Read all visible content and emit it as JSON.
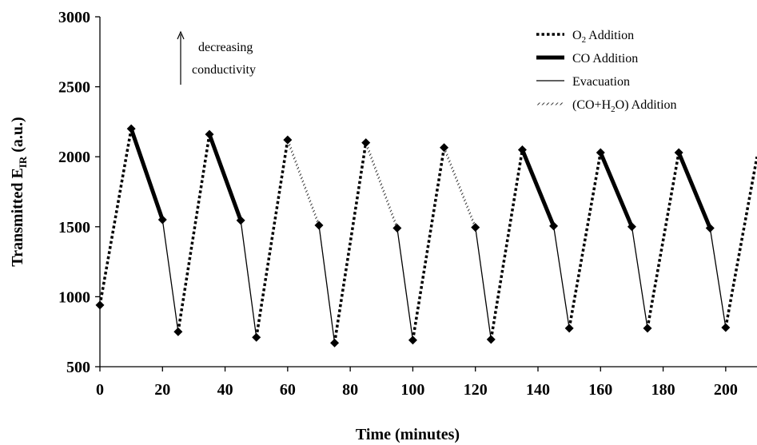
{
  "chart_data": {
    "type": "line",
    "title": "",
    "xlabel": "Time (minutes)",
    "ylabel": {
      "main": "Transmitted E",
      "sub": "IR",
      "suffix": " (a.u.)"
    },
    "xlim": [
      0,
      210
    ],
    "ylim": [
      500,
      3000
    ],
    "x_ticks": [
      0,
      20,
      40,
      60,
      80,
      100,
      120,
      140,
      160,
      180,
      200
    ],
    "y_ticks": [
      500,
      1000,
      1500,
      2000,
      2500,
      3000
    ],
    "grid": false,
    "legend_position": "top-right",
    "annotation": {
      "line1": "decreasing",
      "line2": "conductivity",
      "arrow": "up"
    },
    "legend": [
      {
        "key": "o2",
        "parts": [
          {
            "t": "O",
            "s": "n"
          },
          {
            "t": "2",
            "s": "sub"
          },
          {
            "t": " Addition",
            "s": "n"
          }
        ]
      },
      {
        "key": "co",
        "parts": [
          {
            "t": "CO Addition",
            "s": "n"
          }
        ]
      },
      {
        "key": "evac",
        "parts": [
          {
            "t": "Evacuation",
            "s": "n"
          }
        ]
      },
      {
        "key": "coh2o",
        "parts": [
          {
            "t": "(CO+H",
            "s": "n"
          },
          {
            "t": "2",
            "s": "sub"
          },
          {
            "t": "O) Addition",
            "s": "n"
          }
        ]
      }
    ],
    "styles": {
      "o2": {
        "color": "#000000",
        "dash": "dotted",
        "width": 3.5
      },
      "co": {
        "color": "#000000",
        "dash": "solid",
        "width": 5
      },
      "evac": {
        "color": "#000000",
        "dash": "solid",
        "width": 1.3
      },
      "coh2o": {
        "color": "#000000",
        "dash": "hatched",
        "width": 3
      }
    },
    "segments": [
      {
        "type": "o2",
        "points": [
          [
            0,
            940
          ],
          [
            10,
            2200
          ]
        ]
      },
      {
        "type": "co",
        "points": [
          [
            10,
            2200
          ],
          [
            20,
            1550
          ]
        ]
      },
      {
        "type": "evac",
        "points": [
          [
            20,
            1550
          ],
          [
            25,
            750
          ]
        ]
      },
      {
        "type": "o2",
        "points": [
          [
            25,
            750
          ],
          [
            35,
            2160
          ]
        ]
      },
      {
        "type": "co",
        "points": [
          [
            35,
            2160
          ],
          [
            45,
            1545
          ]
        ]
      },
      {
        "type": "evac",
        "points": [
          [
            45,
            1545
          ],
          [
            50,
            710
          ]
        ]
      },
      {
        "type": "o2",
        "points": [
          [
            50,
            710
          ],
          [
            60,
            2120
          ]
        ]
      },
      {
        "type": "coh2o",
        "points": [
          [
            60,
            2120
          ],
          [
            70,
            1510
          ]
        ]
      },
      {
        "type": "evac",
        "points": [
          [
            70,
            1510
          ],
          [
            75,
            670
          ]
        ]
      },
      {
        "type": "o2",
        "points": [
          [
            75,
            670
          ],
          [
            85,
            2100
          ]
        ]
      },
      {
        "type": "coh2o",
        "points": [
          [
            85,
            2100
          ],
          [
            95,
            1490
          ]
        ]
      },
      {
        "type": "evac",
        "points": [
          [
            95,
            1490
          ],
          [
            100,
            690
          ]
        ]
      },
      {
        "type": "o2",
        "points": [
          [
            100,
            690
          ],
          [
            110,
            2065
          ]
        ]
      },
      {
        "type": "coh2o",
        "points": [
          [
            110,
            2065
          ],
          [
            120,
            1495
          ]
        ]
      },
      {
        "type": "evac",
        "points": [
          [
            120,
            1495
          ],
          [
            125,
            695
          ]
        ]
      },
      {
        "type": "o2",
        "points": [
          [
            125,
            695
          ],
          [
            135,
            2050
          ]
        ]
      },
      {
        "type": "co",
        "points": [
          [
            135,
            2050
          ],
          [
            145,
            1505
          ]
        ]
      },
      {
        "type": "evac",
        "points": [
          [
            145,
            1505
          ],
          [
            150,
            775
          ]
        ]
      },
      {
        "type": "o2",
        "points": [
          [
            150,
            775
          ],
          [
            160,
            2030
          ]
        ]
      },
      {
        "type": "co",
        "points": [
          [
            160,
            2030
          ],
          [
            170,
            1500
          ]
        ]
      },
      {
        "type": "evac",
        "points": [
          [
            170,
            1500
          ],
          [
            175,
            775
          ]
        ]
      },
      {
        "type": "o2",
        "points": [
          [
            175,
            775
          ],
          [
            185,
            2030
          ]
        ]
      },
      {
        "type": "co",
        "points": [
          [
            185,
            2030
          ],
          [
            195,
            1490
          ]
        ]
      },
      {
        "type": "evac",
        "points": [
          [
            195,
            1490
          ],
          [
            200,
            780
          ]
        ]
      },
      {
        "type": "o2",
        "points": [
          [
            200,
            780
          ],
          [
            210,
            2000
          ]
        ]
      }
    ],
    "markers": [
      [
        0,
        940
      ],
      [
        10,
        2200
      ],
      [
        20,
        1550
      ],
      [
        25,
        750
      ],
      [
        35,
        2160
      ],
      [
        45,
        1545
      ],
      [
        50,
        710
      ],
      [
        60,
        2120
      ],
      [
        70,
        1510
      ],
      [
        75,
        670
      ],
      [
        85,
        2100
      ],
      [
        95,
        1490
      ],
      [
        100,
        690
      ],
      [
        110,
        2065
      ],
      [
        120,
        1495
      ],
      [
        125,
        695
      ],
      [
        135,
        2050
      ],
      [
        145,
        1505
      ],
      [
        150,
        775
      ],
      [
        160,
        2030
      ],
      [
        170,
        1500
      ],
      [
        175,
        775
      ],
      [
        185,
        2030
      ],
      [
        195,
        1490
      ],
      [
        200,
        780
      ]
    ]
  }
}
